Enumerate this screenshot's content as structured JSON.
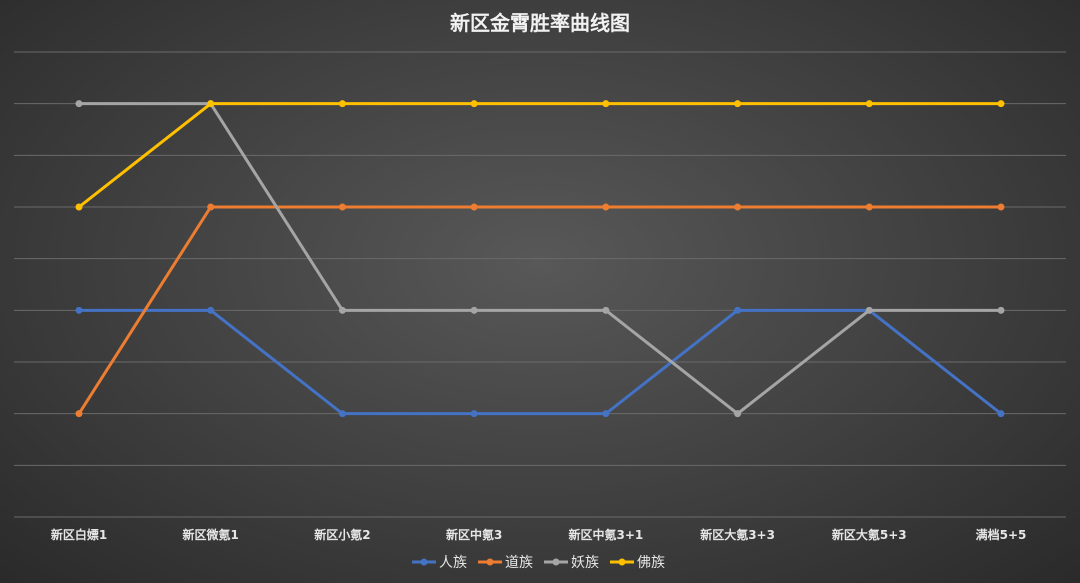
{
  "chart_data": {
    "type": "line",
    "title": "新区金霄胜率曲线图",
    "xlabel": "",
    "ylabel": "",
    "categories": [
      "新区白嫖1",
      "新区微氪1",
      "新区小氪2",
      "新区中氪3",
      "新区中氪3+1",
      "新区大氪3+3",
      "新区大氪5+3",
      "满档5+5"
    ],
    "ylim": [
      0,
      9
    ],
    "grid": true,
    "y_tick_labels_visible": false,
    "legend_position": "bottom",
    "series": [
      {
        "name": "人族",
        "color": "#4472C4",
        "values": [
          4,
          4,
          2,
          2,
          2,
          4,
          4,
          2
        ]
      },
      {
        "name": "道族",
        "color": "#ED7D31",
        "values": [
          2,
          6,
          6,
          6,
          6,
          6,
          6,
          6
        ]
      },
      {
        "name": "妖族",
        "color": "#A5A5A5",
        "values": [
          8,
          8,
          4,
          4,
          4,
          2,
          4,
          4
        ]
      },
      {
        "name": "佛族",
        "color": "#FFC000",
        "values": [
          6,
          8,
          8,
          8,
          8,
          8,
          8,
          8
        ]
      }
    ]
  }
}
